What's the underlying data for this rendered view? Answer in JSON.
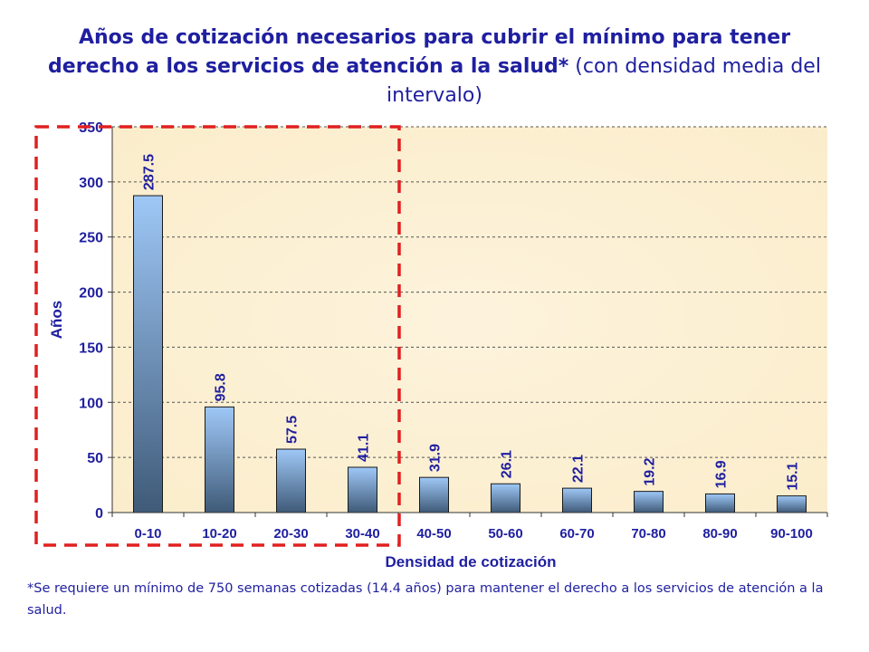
{
  "title": {
    "bold": "Años de cotización necesarios para cubrir el mínimo para tener derecho a los servicios de atención a la salud*",
    "rest": " (con densidad media del intervalo)"
  },
  "footnote": "*Se requiere un mínimo de 750 semanas cotizadas (14.4 años) para mantener el derecho a los servicios de atención a la salud.",
  "chart_data": {
    "type": "bar",
    "categories": [
      "0-10",
      "10-20",
      "20-30",
      "30-40",
      "40-50",
      "50-60",
      "60-70",
      "70-80",
      "80-90",
      "90-100"
    ],
    "values": [
      287.5,
      95.8,
      57.5,
      41.1,
      31.9,
      26.1,
      22.1,
      19.2,
      16.9,
      15.1
    ],
    "data_labels": [
      "287.5",
      "95.8",
      "57.5",
      "41.1",
      "31.9",
      "26.1",
      "22.1",
      "19.2",
      "16.9",
      "15.1"
    ],
    "xlabel": "Densidad de cotización",
    "ylabel": "Años",
    "ylim": [
      0,
      350
    ],
    "yticks": [
      0,
      50,
      100,
      150,
      200,
      250,
      300,
      350
    ],
    "grid": "horizontal dashed",
    "highlight": {
      "style": "red dashed box",
      "categories": [
        "0-10",
        "10-20",
        "20-30",
        "30-40"
      ]
    },
    "colors": {
      "plot_bg": "#fbedcb",
      "bar_top": "#9fc8f7",
      "bar_bottom": "#3f5a78",
      "text": "#1f1fa0",
      "highlight": "#e02020"
    }
  }
}
